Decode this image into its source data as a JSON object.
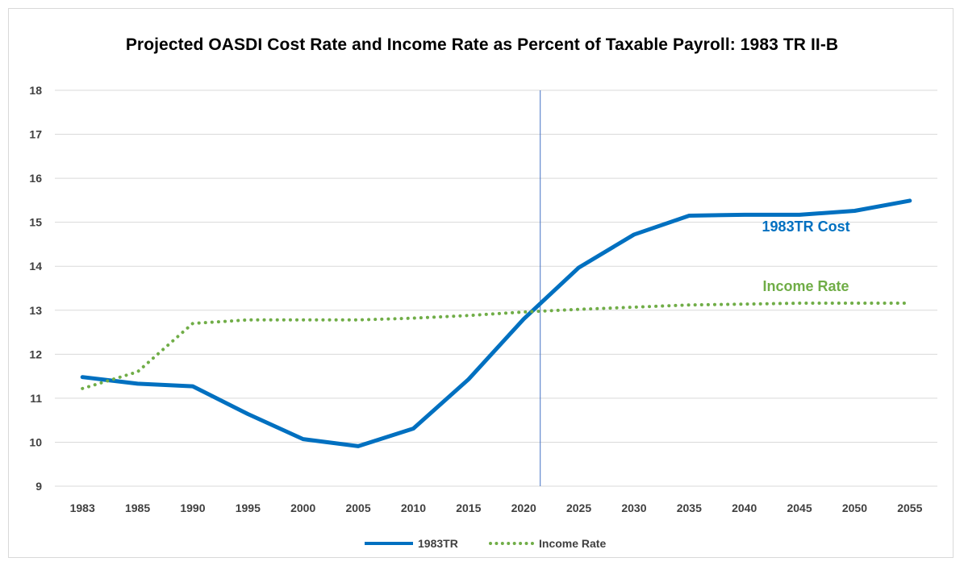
{
  "chart_data": {
    "type": "line",
    "title": "Projected OASDI Cost Rate and Income Rate as Percent of Taxable Payroll:  1983 TR  II-B",
    "xlabel": "",
    "ylabel": "",
    "categories": [
      "1983",
      "1985",
      "1990",
      "1995",
      "2000",
      "2005",
      "2010",
      "2015",
      "2020",
      "2025",
      "2030",
      "2035",
      "2040",
      "2045",
      "2050",
      "2055"
    ],
    "ylim": [
      9,
      18
    ],
    "yticks": [
      9,
      10,
      11,
      12,
      13,
      14,
      15,
      16,
      17,
      18
    ],
    "grid": true,
    "legend_position": "bottom",
    "series": [
      {
        "name": "1983TR",
        "style": "solid",
        "color": "#0070c0",
        "values": [
          11.48,
          11.33,
          11.27,
          10.64,
          10.07,
          9.91,
          10.31,
          11.43,
          12.8,
          13.97,
          14.72,
          15.15,
          15.17,
          15.17,
          15.26,
          15.49
        ]
      },
      {
        "name": "Income Rate",
        "style": "dotted",
        "color": "#70ad47",
        "values": [
          11.22,
          11.6,
          12.7,
          12.78,
          12.78,
          12.78,
          12.82,
          12.88,
          12.96,
          13.02,
          13.07,
          13.12,
          13.14,
          13.16,
          13.16,
          13.16
        ]
      }
    ],
    "annotations": [
      {
        "text": "1983TR Cost",
        "color": "#0070c0",
        "anchor_category": "2045",
        "anchor_value": 14.9
      },
      {
        "text": "Income Rate",
        "color": "#70ad47",
        "anchor_category": "2045",
        "anchor_value": 13.55
      }
    ],
    "vertical_marker": {
      "between": [
        "2020",
        "2025"
      ],
      "fraction": 0.3,
      "color": "#4472c4"
    }
  },
  "legend": {
    "items": [
      {
        "label": "1983TR",
        "style": "solid"
      },
      {
        "label": "Income Rate",
        "style": "dotted"
      }
    ]
  }
}
